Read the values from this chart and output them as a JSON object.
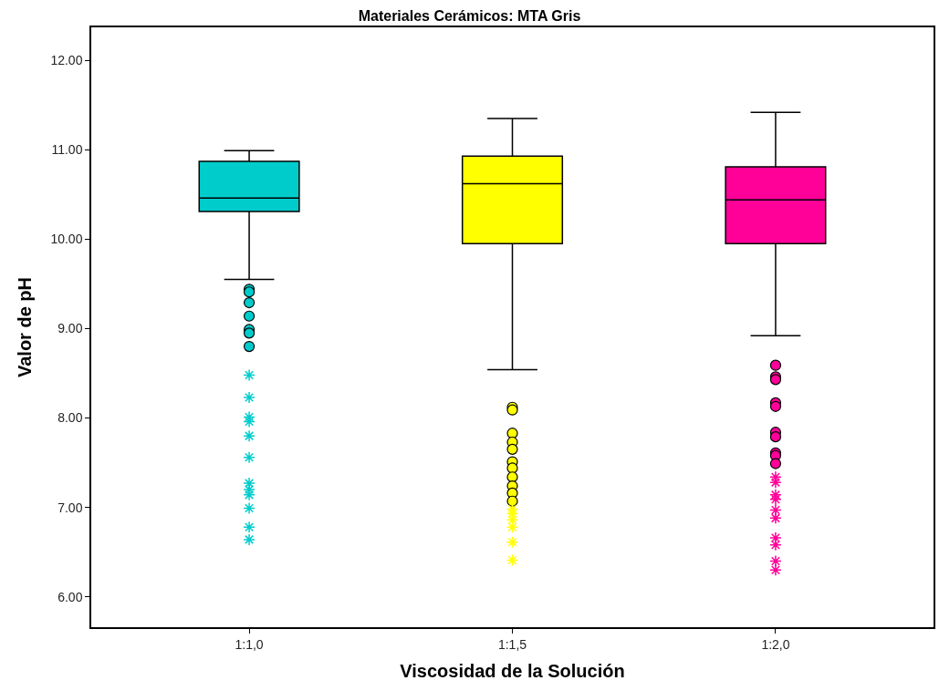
{
  "chart_data": {
    "type": "box",
    "title": "Materiales Cerámicos: MTA Gris",
    "xlabel": "Viscosidad de la Solución",
    "ylabel": "Valor de pH",
    "categories": [
      "1:1,0",
      "1:1,5",
      "1:2,0"
    ],
    "colors": [
      "#00cccc",
      "#ffff00",
      "#ff0099"
    ],
    "boxes": [
      {
        "low": 9.55,
        "q1": 10.31,
        "median": 10.46,
        "q3": 10.87,
        "high": 10.99,
        "outliers": [
          9.44,
          9.41,
          9.29,
          9.14,
          8.99,
          8.95,
          8.8,
          8.48,
          8.23,
          8.01,
          7.96,
          7.8,
          7.56,
          7.27,
          7.2,
          7.14,
          6.99,
          6.78,
          6.64
        ]
      },
      {
        "low": 8.54,
        "q1": 9.95,
        "median": 10.62,
        "q3": 10.93,
        "high": 11.35,
        "outliers": [
          8.12,
          8.09,
          7.83,
          7.73,
          7.65,
          7.51,
          7.44,
          7.34,
          7.24,
          7.16,
          7.07,
          6.98,
          6.93,
          6.86,
          6.78,
          6.61,
          6.41
        ]
      },
      {
        "low": 8.92,
        "q1": 9.95,
        "median": 10.44,
        "q3": 10.81,
        "high": 11.42,
        "outliers": [
          8.59,
          8.46,
          8.43,
          8.17,
          8.13,
          7.84,
          7.79,
          7.61,
          7.58,
          7.49,
          7.34,
          7.28,
          7.14,
          7.09,
          6.97,
          6.88,
          6.66,
          6.58,
          6.4,
          6.3
        ]
      }
    ],
    "ylim": [
      5.66,
      12.37
    ],
    "yticks": [
      {
        "value": 6,
        "label": "6.00"
      },
      {
        "value": 7,
        "label": "7.00"
      },
      {
        "value": 8,
        "label": "8.00"
      },
      {
        "value": 9,
        "label": "9.00"
      },
      {
        "value": 10,
        "label": "10.00"
      },
      {
        "value": 11,
        "label": "11.00"
      },
      {
        "value": 12,
        "label": "12.00"
      }
    ]
  }
}
